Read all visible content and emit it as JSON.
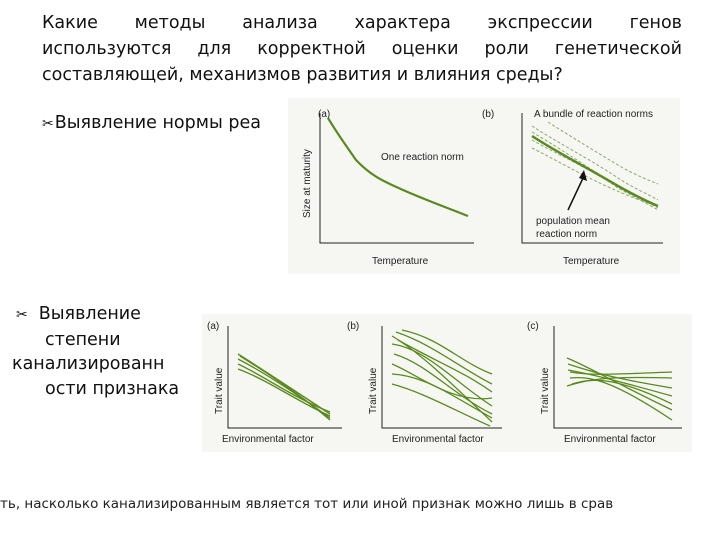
{
  "question": {
    "lines": [
      "Какие методы анализа характера экспрессии генов",
      "используются для корректной оценки роли генетической",
      "составляющей, механизмов развития и влияния среды?"
    ]
  },
  "bullet_icon": "scissors-icon",
  "bullet1": {
    "symbol": "✂",
    "text": "Выявление нормы реа"
  },
  "bullet2": {
    "symbol": "✂",
    "lines": [
      "Выявление",
      "степени",
      "канализированн",
      "ости признака"
    ]
  },
  "figure_top": {
    "panel_a": {
      "label": "(a)",
      "ylabel": "Size at maturity",
      "xlabel": "Temperature",
      "annotation": "One reaction norm"
    },
    "panel_b": {
      "label": "(b)",
      "title": "A bundle of reaction norms",
      "xlabel": "Temperature",
      "annotation_line1": "population mean",
      "annotation_line2": "reaction norm"
    }
  },
  "figure_bottom": {
    "panel_a": {
      "label": "(a)",
      "ylabel": "Trait value",
      "xlabel": "Environmental factor"
    },
    "panel_b": {
      "label": "(b)",
      "ylabel": "Trait value",
      "xlabel": "Environmental factor"
    },
    "panel_c": {
      "label": "(c)",
      "ylabel": "Trait value",
      "xlabel": "Environmental factor"
    }
  },
  "bottom_text": "ть, насколько канализированным является тот или иной признак можно лишь в срав",
  "colors": {
    "line": "#5a8a1f",
    "text": "#111111"
  }
}
